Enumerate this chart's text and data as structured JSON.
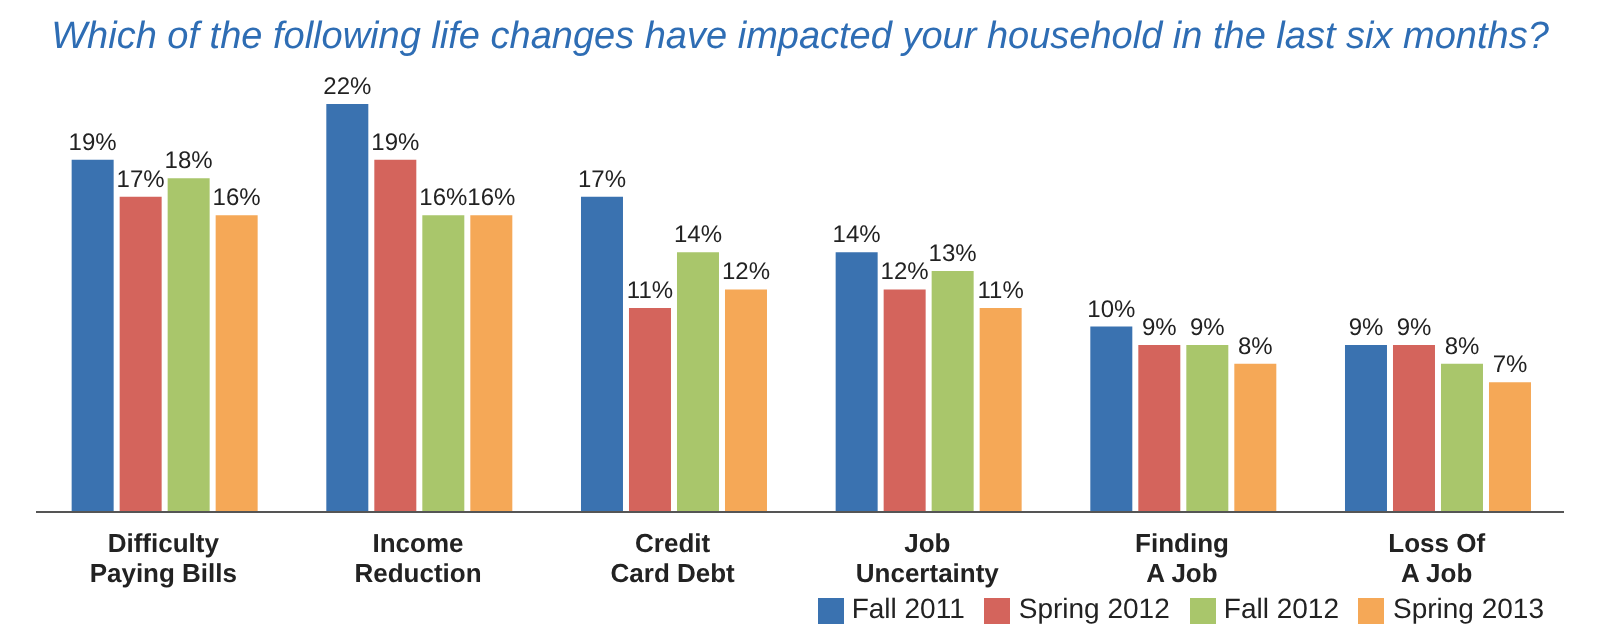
{
  "chart_data": {
    "type": "bar",
    "title": "Which of the following life changes have impacted your household in the last six months?",
    "categories": [
      "Difficulty Paying Bills",
      "Income Reduction",
      "Credit Card Debt",
      "Job Uncertainty",
      "Finding A Job",
      "Loss Of A Job"
    ],
    "series": [
      {
        "name": "Fall 2011",
        "color": "#3a72b0",
        "values": [
          19,
          22,
          17,
          14,
          10,
          9
        ],
        "value_labels": [
          "19%",
          "22%",
          "17%",
          "14%",
          "10%",
          "9%"
        ]
      },
      {
        "name": "Spring 2012",
        "color": "#d4645c",
        "values": [
          17,
          19,
          11,
          12,
          9,
          9
        ],
        "value_labels": [
          "17%",
          "19%",
          "11%",
          "12%",
          "9%",
          "9%"
        ]
      },
      {
        "name": "Fall 2012",
        "color": "#a9c66b",
        "values": [
          18,
          16,
          14,
          13,
          9,
          8
        ],
        "value_labels": [
          "18%",
          "16%",
          "14%",
          "13%",
          "9%",
          "8%"
        ]
      },
      {
        "name": "Spring 2013",
        "color": "#f5a857",
        "values": [
          16,
          16,
          12,
          11,
          8,
          7
        ],
        "value_labels": [
          "16%",
          "16%",
          "12%",
          "11%",
          "8%",
          "7%"
        ]
      }
    ],
    "legend": "bottom right",
    "grid": false
  }
}
